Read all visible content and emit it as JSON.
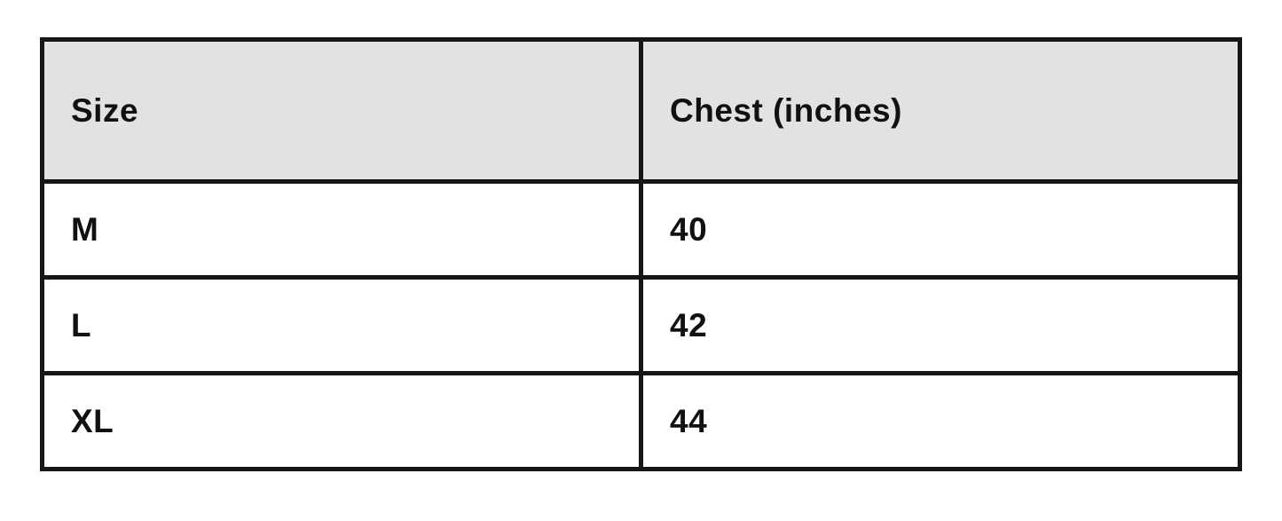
{
  "table": {
    "columns": [
      {
        "label": "Size"
      },
      {
        "label": "Chest (inches)"
      }
    ],
    "rows": [
      {
        "size": "M",
        "chest": "40"
      },
      {
        "size": "L",
        "chest": "42"
      },
      {
        "size": "XL",
        "chest": "44"
      }
    ],
    "header_bg": "#e2e2e2",
    "border_color": "#161616",
    "text_color": "#111111"
  },
  "chart_data": {
    "type": "table",
    "title": "",
    "columns": [
      "Size",
      "Chest (inches)"
    ],
    "categories": [
      "M",
      "L",
      "XL"
    ],
    "values": [
      40,
      42,
      44
    ],
    "rows": [
      [
        "M",
        40
      ],
      [
        "L",
        42
      ],
      [
        "XL",
        44
      ]
    ],
    "layout": {
      "header_background": "#e2e2e2",
      "body_background": "#ffffff",
      "border": "thick black grid lines",
      "text_style": "bold, left-aligned"
    }
  }
}
